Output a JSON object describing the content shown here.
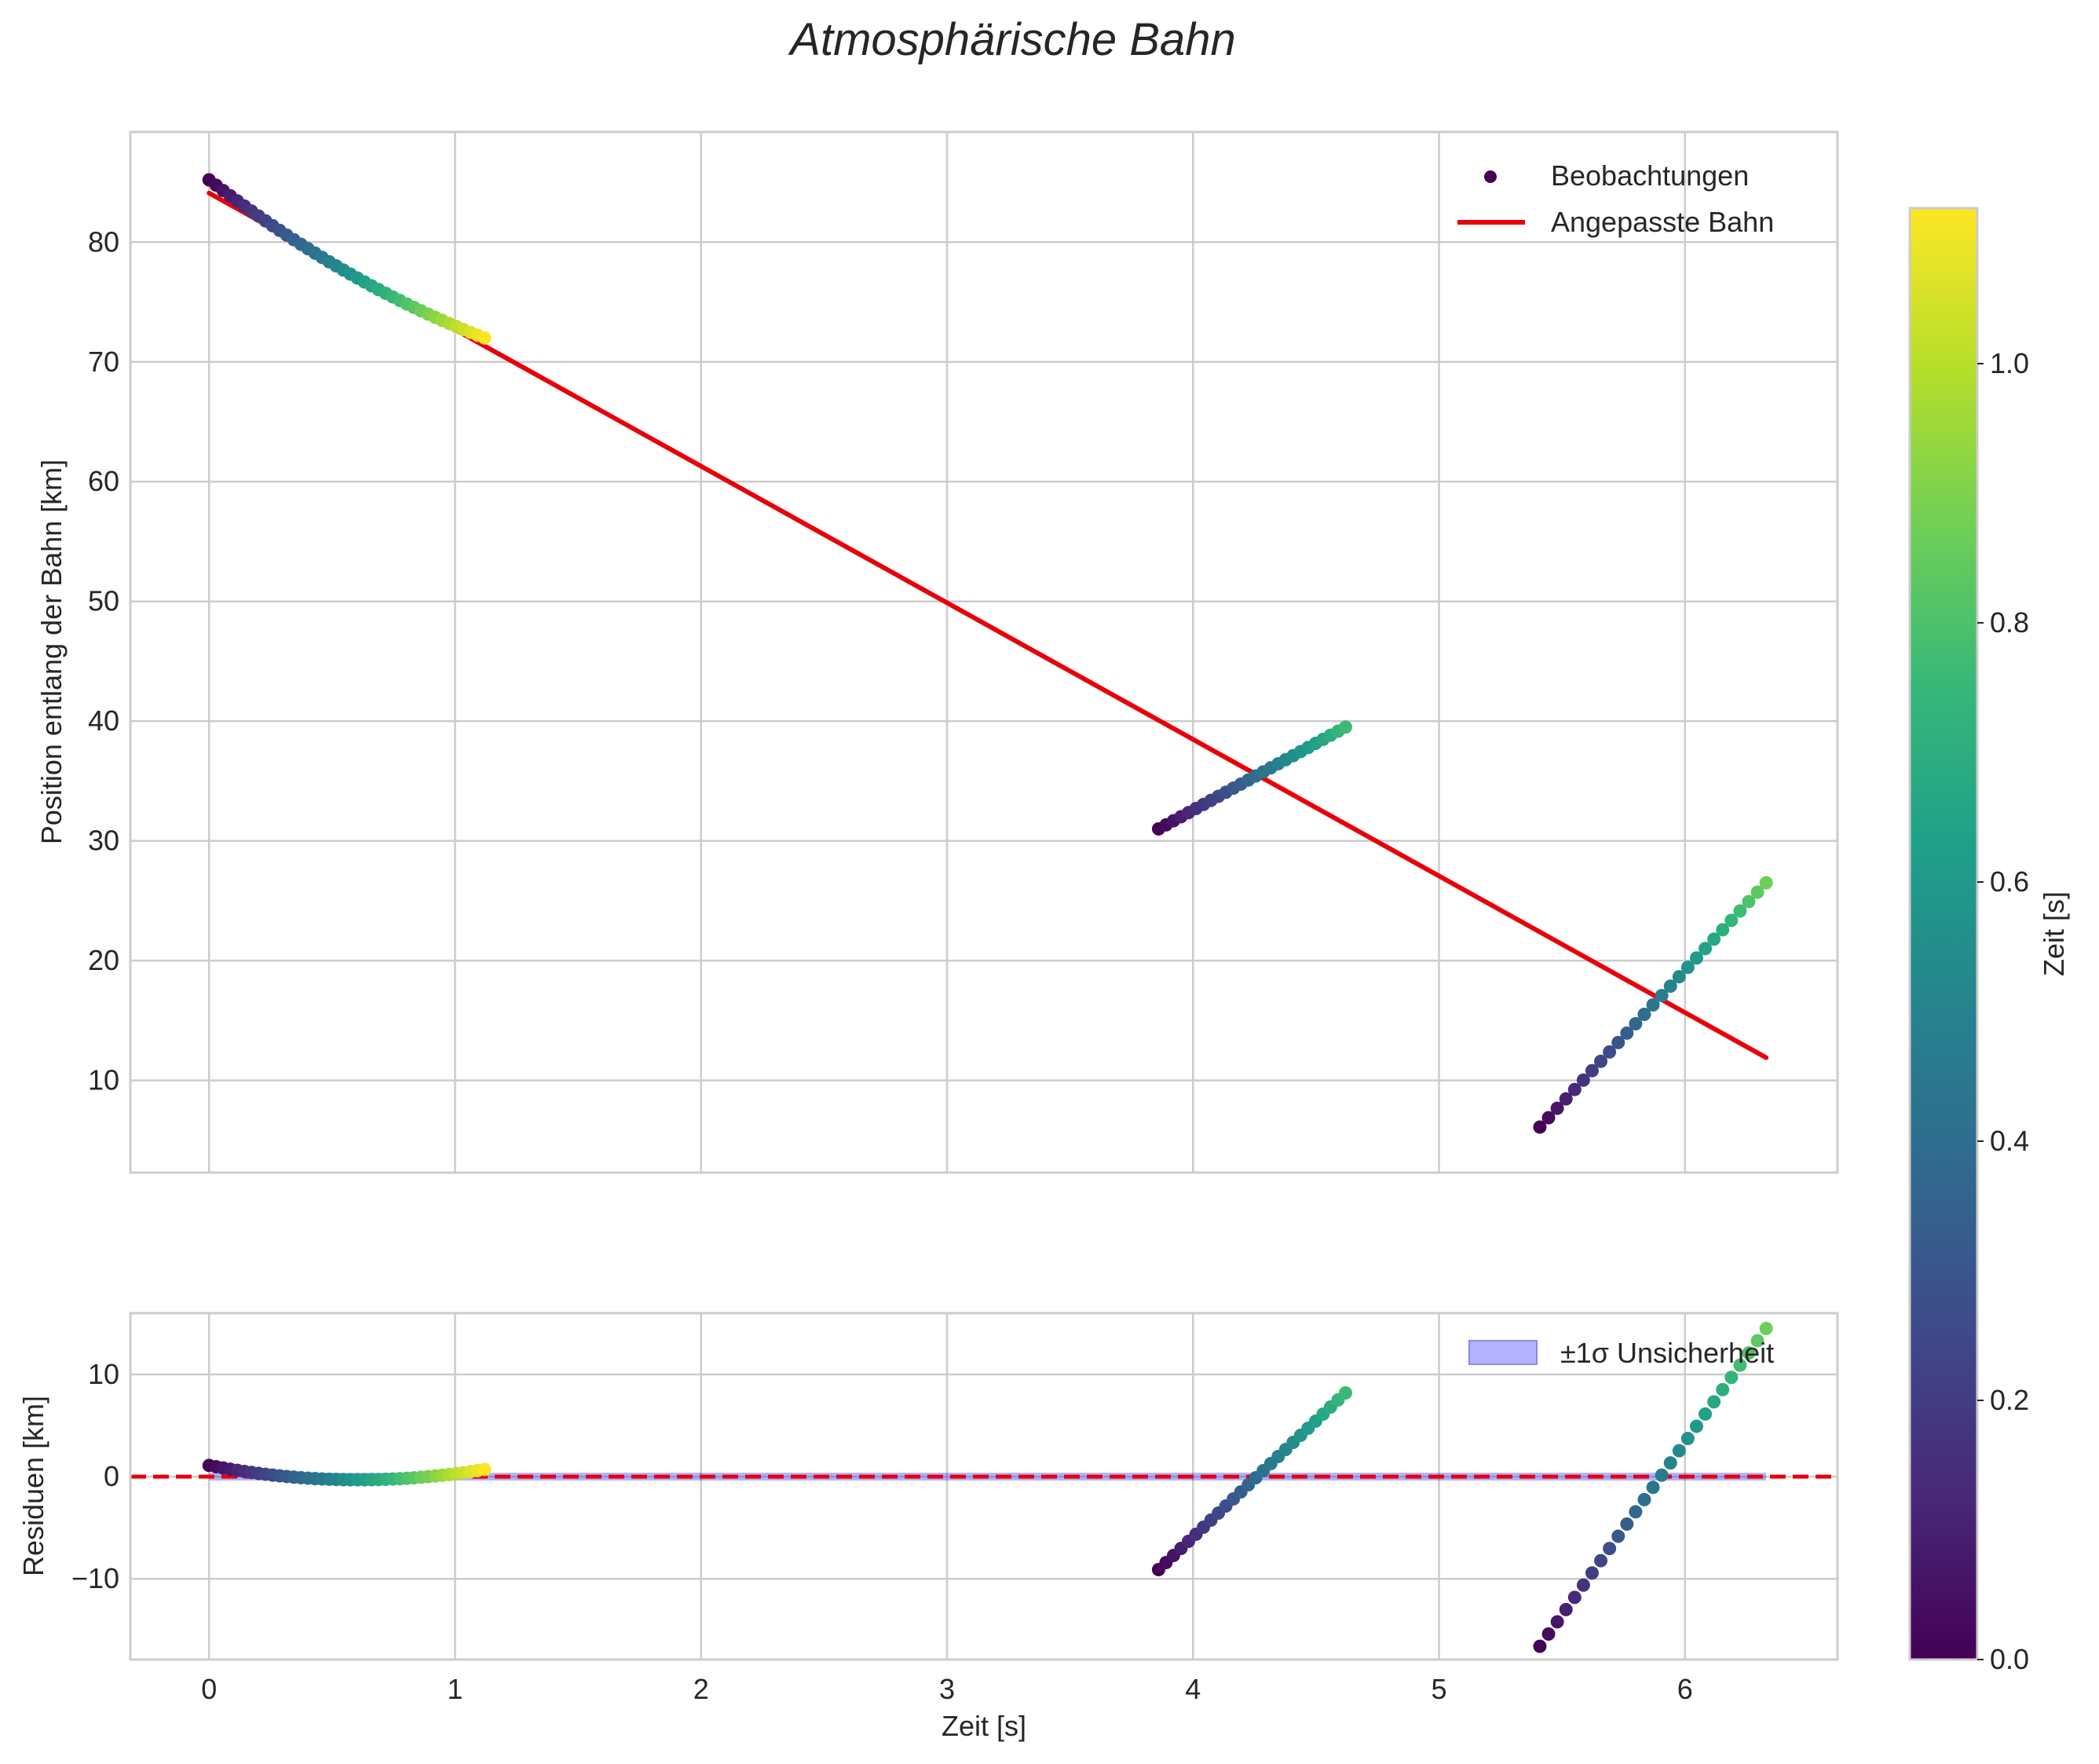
{
  "chart_data": {
    "title": "Atmosphärische Bahn",
    "colorbar": {
      "label": "Zeit [s]",
      "colormap": "viridis",
      "range": [
        0.0,
        1.12
      ],
      "ticks": [
        0.0,
        0.2,
        0.4,
        0.6,
        0.8,
        1.0
      ],
      "tick_labels": [
        "0.0",
        "0.2",
        "0.4",
        "0.6",
        "0.8",
        "1.0"
      ]
    },
    "colormap_stops": [
      "#440154",
      "#482878",
      "#3e4989",
      "#31688e",
      "#26828e",
      "#1f9e89",
      "#35b779",
      "#6ece58",
      "#b5de2b",
      "#fde725"
    ],
    "main_panel": {
      "type": "scatter",
      "ylabel": "Position entlang der Bahn [km]",
      "xlim": [
        -0.32,
        6.62
      ],
      "ylim": [
        2.3,
        89.2
      ],
      "xticks": [
        0,
        1,
        2,
        3,
        4,
        5,
        6
      ],
      "yticks": [
        10,
        20,
        30,
        40,
        50,
        60,
        70,
        80
      ],
      "ytick_labels": [
        "10",
        "20",
        "30",
        "40",
        "50",
        "60",
        "70",
        "80"
      ],
      "grid": true,
      "legend": {
        "position": "top-right",
        "entries": [
          {
            "label": "Beobachtungen",
            "kind": "marker",
            "color": "#440154"
          },
          {
            "label": "Angepasste Bahn",
            "kind": "line",
            "color": "#e8000b"
          }
        ]
      },
      "series": [
        {
          "name": "Beobachtungen (Segment 1)",
          "t_start": 0.0,
          "t_end": 1.12,
          "n": 40,
          "pos_start": 85.2,
          "pos_end": 72.0,
          "curvature_mid": -1.1,
          "color_range": [
            0.0,
            1.12
          ]
        },
        {
          "name": "Beobachtungen (Segment 2)",
          "t_start": 3.86,
          "t_end": 4.62,
          "n": 26,
          "pos_start": 31.0,
          "pos_end": 39.5,
          "curvature_mid": 0.0,
          "color_range": [
            0.0,
            0.76
          ]
        },
        {
          "name": "Beobachtungen (Segment 3)",
          "t_start": 5.41,
          "t_end": 6.33,
          "n": 27,
          "pos_start": 6.1,
          "pos_end": 26.5,
          "curvature_mid": 0.0,
          "color_range": [
            0.0,
            0.87
          ]
        },
        {
          "name": "Angepasste Bahn",
          "type": "line",
          "x": [
            0.0,
            6.33
          ],
          "y": [
            84.1,
            11.9
          ],
          "color": "#e8000b"
        }
      ]
    },
    "residual_panel": {
      "type": "scatter",
      "xlabel": "Zeit [s]",
      "ylabel": "Residuen [km]",
      "xlim": [
        -0.32,
        6.62
      ],
      "ylim": [
        -17.9,
        16.0
      ],
      "xticks": [
        0,
        1,
        2,
        3,
        4,
        5,
        6
      ],
      "xtick_labels": [
        "0",
        "1",
        "2",
        "3",
        "4",
        "5",
        "6"
      ],
      "yticks": [
        -10,
        0,
        10
      ],
      "ytick_labels": [
        "−10",
        "0",
        "10"
      ],
      "grid": true,
      "zero_line": {
        "y": 0,
        "style": "dashed",
        "color": "#e8000b"
      },
      "band": {
        "label": "±1σ Unsicherheit",
        "x": [
          0.0,
          6.33
        ],
        "y": [
          -0.15,
          0.15
        ],
        "color": "#0000ff"
      },
      "legend": {
        "position": "top-right",
        "entries": [
          {
            "label": "±1σ Unsicherheit",
            "kind": "patch",
            "color": "#b3b3ff"
          }
        ]
      },
      "series": [
        {
          "name": "Residuen (Segment 1)",
          "t_start": 0.0,
          "t_end": 1.12,
          "n": 40,
          "pos_start": 1.1,
          "pos_end": 0.7,
          "curvature_mid": -1.2,
          "color_range": [
            0.0,
            1.12
          ]
        },
        {
          "name": "Residuen (Segment 2)",
          "t_start": 3.86,
          "t_end": 4.62,
          "n": 26,
          "pos_start": -9.1,
          "pos_end": 8.2,
          "curvature_mid": 0.0,
          "color_range": [
            0.0,
            0.76
          ]
        },
        {
          "name": "Residuen (Segment 3)",
          "t_start": 5.41,
          "t_end": 6.33,
          "n": 27,
          "pos_start": -16.6,
          "pos_end": 14.5,
          "curvature_mid": 0.0,
          "color_range": [
            0.0,
            0.87
          ]
        }
      ]
    }
  }
}
